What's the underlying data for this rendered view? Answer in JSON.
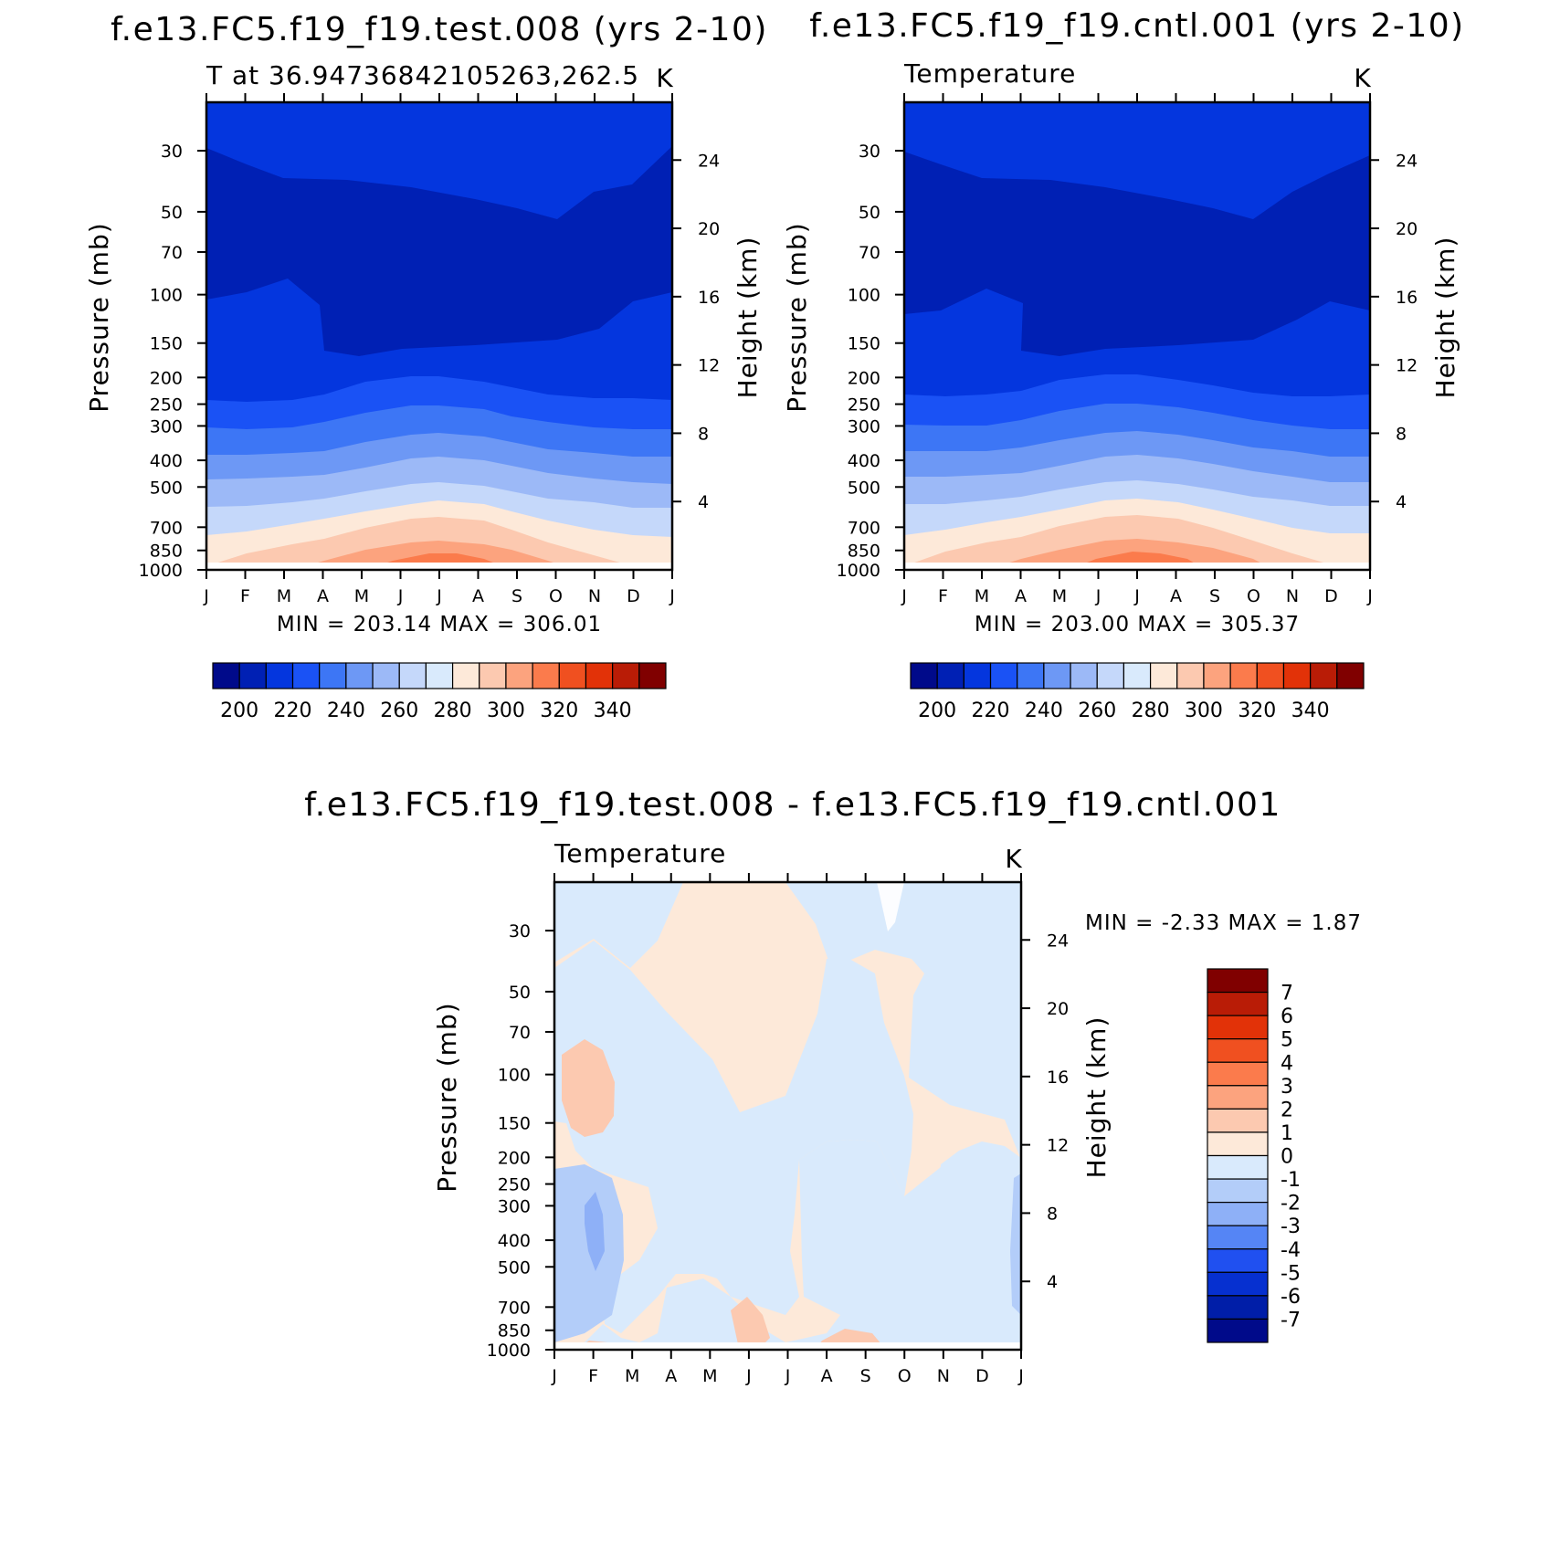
{
  "chart_data": [
    {
      "type": "heatmap",
      "title": "f.e13.FC5.f19_f19.test.008 (yrs 2-10)",
      "subtitle_left": "T at 36.94736842105263,262.5",
      "subtitle_right": "K",
      "xlabel": "",
      "ylabel": "Pressure (mb)",
      "ylabel_right": "Height (km)",
      "x_ticks": [
        "J",
        "F",
        "M",
        "A",
        "M",
        "J",
        "J",
        "A",
        "S",
        "O",
        "N",
        "D",
        "J"
      ],
      "y_ticks": [
        30,
        50,
        70,
        100,
        150,
        200,
        250,
        300,
        400,
        500,
        700,
        850,
        1000
      ],
      "y_right_ticks": [
        4,
        8,
        12,
        16,
        20,
        24
      ],
      "y_scale": "log",
      "ylim": [
        1000,
        20
      ],
      "min_max_text": "MIN = 203.14 MAX = 306.01",
      "min": 203.14,
      "max": 306.01,
      "colorbar": {
        "orientation": "horizontal",
        "labels": [
          "200",
          "220",
          "240",
          "260",
          "280",
          "300",
          "320",
          "340"
        ],
        "levels": [
          190,
          200,
          210,
          220,
          230,
          240,
          250,
          260,
          270,
          280,
          290,
          300,
          310,
          320,
          330,
          340,
          350
        ],
        "colors": [
          "#000a8a",
          "#0020b4",
          "#0436de",
          "#1a52f5",
          "#3d76f5",
          "#6d98f5",
          "#9cb9f7",
          "#c5d8fa",
          "#d9eafc",
          "#fde9d9",
          "#fcc9b0",
          "#fca37e",
          "#fb7b4c",
          "#f05020",
          "#e23208",
          "#b91c06",
          "#800000"
        ]
      },
      "series": [
        {
          "name": "",
          "x": [
            0,
            1,
            2,
            3,
            4,
            5,
            6,
            7,
            8,
            9,
            10,
            11,
            12
          ],
          "levels_y": [
            30,
            50,
            70,
            100,
            150,
            200,
            250,
            300,
            400,
            500,
            700,
            850,
            1000
          ]
        }
      ]
    },
    {
      "type": "heatmap",
      "title": "f.e13.FC5.f19_f19.cntl.001 (yrs 2-10)",
      "subtitle_left": "Temperature",
      "subtitle_right": "K",
      "xlabel": "",
      "ylabel": "Pressure (mb)",
      "ylabel_right": "Height (km)",
      "x_ticks": [
        "J",
        "F",
        "M",
        "A",
        "M",
        "J",
        "J",
        "A",
        "S",
        "O",
        "N",
        "D",
        "J"
      ],
      "y_ticks": [
        30,
        50,
        70,
        100,
        150,
        200,
        250,
        300,
        400,
        500,
        700,
        850,
        1000
      ],
      "y_right_ticks": [
        4,
        8,
        12,
        16,
        20,
        24
      ],
      "y_scale": "log",
      "ylim": [
        1000,
        20
      ],
      "min_max_text": "MIN = 203.00 MAX = 305.37",
      "min": 203.0,
      "max": 305.37,
      "colorbar": {
        "orientation": "horizontal",
        "labels": [
          "200",
          "220",
          "240",
          "260",
          "280",
          "300",
          "320",
          "340"
        ],
        "levels": [
          190,
          200,
          210,
          220,
          230,
          240,
          250,
          260,
          270,
          280,
          290,
          300,
          310,
          320,
          330,
          340,
          350
        ],
        "colors": [
          "#000a8a",
          "#0020b4",
          "#0436de",
          "#1a52f5",
          "#3d76f5",
          "#6d98f5",
          "#9cb9f7",
          "#c5d8fa",
          "#d9eafc",
          "#fde9d9",
          "#fcc9b0",
          "#fca37e",
          "#fb7b4c",
          "#f05020",
          "#e23208",
          "#b91c06",
          "#800000"
        ]
      }
    },
    {
      "type": "heatmap",
      "title": "f.e13.FC5.f19_f19.test.008 - f.e13.FC5.f19_f19.cntl.001",
      "subtitle_left": "Temperature",
      "subtitle_right": "K",
      "xlabel": "",
      "ylabel": "Pressure (mb)",
      "ylabel_right": "Height (km)",
      "x_ticks": [
        "J",
        "F",
        "M",
        "A",
        "M",
        "J",
        "J",
        "A",
        "S",
        "O",
        "N",
        "D",
        "J"
      ],
      "y_ticks": [
        30,
        50,
        70,
        100,
        150,
        200,
        250,
        300,
        400,
        500,
        700,
        850,
        1000
      ],
      "y_right_ticks": [
        4,
        8,
        12,
        16,
        20,
        24
      ],
      "y_scale": "log",
      "ylim": [
        1000,
        20
      ],
      "min_max_text": "MIN = -2.33 MAX = 1.87",
      "min": -2.33,
      "max": 1.87,
      "colorbar": {
        "orientation": "vertical",
        "labels": [
          "7",
          "6",
          "5",
          "4",
          "3",
          "2",
          "1",
          "0",
          "-1",
          "-2",
          "-3",
          "-4",
          "-5",
          "-6",
          "-7"
        ],
        "colors": [
          "#800000",
          "#b91c06",
          "#e23208",
          "#f05020",
          "#fb7b4c",
          "#fca37e",
          "#fcc9b0",
          "#fde9d9",
          "#d9eafc",
          "#b3cdf9",
          "#8eb0f7",
          "#5585f5",
          "#2050f0",
          "#0630d0",
          "#001ea8",
          "#000a8a"
        ]
      }
    }
  ]
}
